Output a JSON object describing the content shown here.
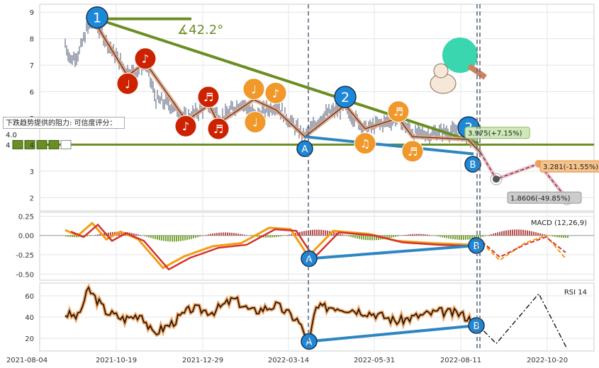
{
  "chart_data": [
    {
      "type": "line",
      "panel": "price",
      "ylim": [
        1.5,
        9.3
      ],
      "yticks": [
        "2",
        "3",
        "4",
        "5",
        "6",
        "7",
        "8",
        "9"
      ],
      "angle_label": "∡42.2°",
      "resistance_note": "下跌趋势提供的阻力: 可信度评分：4.0",
      "rating_label": "4",
      "targets": [
        {
          "label": "3.975(+7.15%)",
          "value": 3.975
        },
        {
          "label": "3.281(-11.55%)",
          "value": 3.281
        },
        {
          "label": "1.8606(-49.85%)",
          "value": 1.8606
        }
      ],
      "wave_labels": [
        "1",
        "2",
        "3"
      ],
      "point_labels": [
        "A",
        "B"
      ],
      "support_level": 4.0,
      "grid": true
    },
    {
      "type": "line",
      "panel": "macd",
      "title": "MACD (12,26,9)",
      "ylim": [
        -0.58,
        0.3
      ],
      "yticks": [
        "0.25",
        "0.00",
        "-0.25",
        "-0.50"
      ],
      "point_labels": [
        "A",
        "B"
      ]
    },
    {
      "type": "line",
      "panel": "rsi",
      "title": "RSI 14",
      "ylim": [
        8,
        72
      ],
      "yticks": [
        "60",
        "40",
        "20"
      ],
      "point_labels": [
        "A",
        "B"
      ]
    }
  ],
  "x_axis": {
    "ticks": [
      "2021-08-04",
      "2021-10-19",
      "2021-12-29",
      "2022-03-14",
      "2022-05-31",
      "2022-08-11",
      "2022-10-20"
    ]
  }
}
